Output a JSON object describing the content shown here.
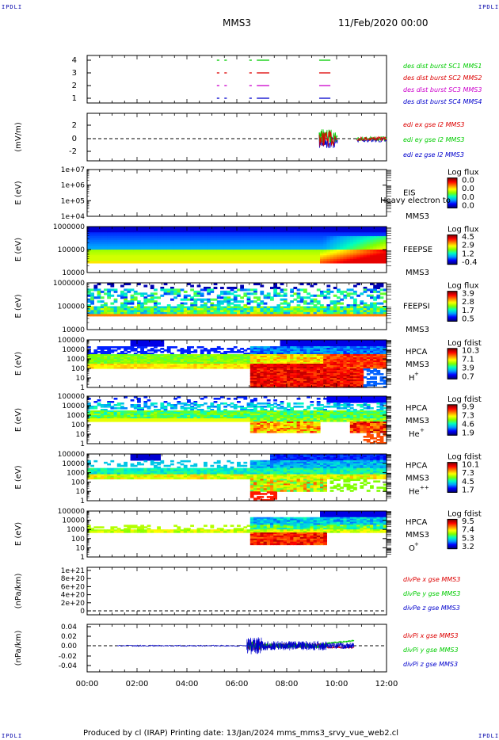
{
  "corners": {
    "tl": "IPDLI",
    "tr": "IPDLI",
    "bl": "IPDLI",
    "br": "IPDLI"
  },
  "header": {
    "title": "MMS3",
    "date": "11/Feb/2020 00:00"
  },
  "footer": {
    "text": "Produced by cl (IRAP)   Printing date: 13/Jan/2024   mms_mms3_srvy_vue_web2.cl"
  },
  "colors": {
    "red": "#dd0000",
    "magenta": "#cc00cc",
    "green": "#00cc00",
    "blue": "#0000cc",
    "colorbar": [
      "#000080",
      "#0000ff",
      "#00a0ff",
      "#00ffc0",
      "#80ff00",
      "#ffff00",
      "#ff8000",
      "#ff0000",
      "#800000"
    ]
  },
  "chart_data": [
    {
      "type": "line",
      "id": "burst",
      "ylim": [
        0.5,
        4.5
      ],
      "yticks": [
        "4",
        "3",
        "2",
        "1"
      ],
      "xlim": [
        0,
        12
      ],
      "series": [
        {
          "name": "des dist burst SC1 MMS1",
          "color": "#00cc00",
          "level": 4,
          "segments": [
            [
              5.2,
              5.3
            ],
            [
              5.5,
              5.6
            ],
            [
              6.5,
              6.6
            ],
            [
              6.8,
              7.3
            ],
            [
              9.3,
              9.75
            ]
          ]
        },
        {
          "name": "des dist burst SC2 MMS2",
          "color": "#dd0000",
          "level": 3,
          "segments": [
            [
              5.2,
              5.3
            ],
            [
              5.5,
              5.6
            ],
            [
              6.5,
              6.6
            ],
            [
              6.8,
              7.3
            ],
            [
              9.3,
              9.75
            ]
          ]
        },
        {
          "name": "des dist burst SC3 MMS3",
          "color": "#cc00cc",
          "level": 2,
          "segments": [
            [
              5.2,
              5.3
            ],
            [
              5.5,
              5.6
            ],
            [
              6.5,
              6.6
            ],
            [
              6.8,
              7.3
            ],
            [
              9.3,
              9.75
            ]
          ]
        },
        {
          "name": "des dist burst SC4 MMS4",
          "color": "#0000cc",
          "level": 1,
          "segments": [
            [
              5.2,
              5.3
            ],
            [
              5.5,
              5.6
            ],
            [
              6.5,
              6.6
            ],
            [
              6.8,
              7.3
            ],
            [
              9.3,
              9.75
            ]
          ]
        }
      ]
    },
    {
      "type": "line",
      "id": "edi",
      "ylabel": "(mV/m)",
      "ylim": [
        -3,
        3.5
      ],
      "yticks": [
        "2",
        "0",
        "-2"
      ],
      "xlim": [
        0,
        12
      ],
      "series": [
        {
          "name": "edi ex gse l2 MMS3",
          "color": "#dd0000"
        },
        {
          "name": "edi ey gse l2 MMS3",
          "color": "#00cc00"
        },
        {
          "name": "edi ez gse l2 MMS3",
          "color": "#0000cc"
        }
      ]
    },
    {
      "type": "heatmap",
      "id": "eis",
      "ylabel": "E (eV)",
      "yticks": [
        "1e+07",
        "1e+06",
        "1e+05",
        "1e+04"
      ],
      "instrument": "EIS",
      "spacecraft": "MMS3",
      "overlay": "Heavy electron to",
      "cbar_title": "Log flux",
      "cbar_ticks": [
        "0.0",
        "0.0",
        "0.0",
        "0.0"
      ]
    },
    {
      "type": "heatmap",
      "id": "feepse",
      "ylabel": "E (eV)",
      "yticks": [
        "1000000",
        "100000",
        "10000"
      ],
      "instrument": "FEEPSE",
      "spacecraft": "MMS3",
      "cbar_title": "Log flux",
      "cbar_ticks": [
        "4.5",
        "2.9",
        "1.2",
        "-0.4"
      ]
    },
    {
      "type": "heatmap",
      "id": "feepsi",
      "ylabel": "E (eV)",
      "yticks": [
        "1000000",
        "100000",
        "10000"
      ],
      "instrument": "FEEPSI",
      "spacecraft": "MMS3",
      "cbar_title": "Log flux",
      "cbar_ticks": [
        "3.9",
        "2.8",
        "1.7",
        "0.5"
      ]
    },
    {
      "type": "heatmap",
      "id": "hpca_h",
      "ylabel": "E (eV)",
      "yticks": [
        "100000",
        "10000",
        "1000",
        "100",
        "10",
        "1"
      ],
      "instrument": "HPCA",
      "spacecraft": "MMS3",
      "species": "H",
      "charge": "+",
      "cbar_title": "Log fdist",
      "cbar_ticks": [
        "10.3",
        "7.1",
        "3.9",
        "0.7"
      ]
    },
    {
      "type": "heatmap",
      "id": "hpca_he",
      "ylabel": "E (eV)",
      "yticks": [
        "100000",
        "10000",
        "1000",
        "100",
        "10",
        "1"
      ],
      "instrument": "HPCA",
      "spacecraft": "MMS3",
      "species": "He",
      "charge": "+",
      "cbar_title": "Log fdist",
      "cbar_ticks": [
        "9.9",
        "7.3",
        "4.6",
        "1.9"
      ]
    },
    {
      "type": "heatmap",
      "id": "hpca_he2",
      "ylabel": "E (eV)",
      "yticks": [
        "100000",
        "10000",
        "1000",
        "100",
        "10",
        "1"
      ],
      "instrument": "HPCA",
      "spacecraft": "MMS3",
      "species": "He",
      "charge": "++",
      "cbar_title": "Log fdist",
      "cbar_ticks": [
        "10.1",
        "7.3",
        "4.5",
        "1.7"
      ]
    },
    {
      "type": "heatmap",
      "id": "hpca_o",
      "ylabel": "E (eV)",
      "yticks": [
        "100000",
        "10000",
        "1000",
        "100",
        "10",
        "1"
      ],
      "instrument": "HPCA",
      "spacecraft": "MMS3",
      "species": "O",
      "charge": "+",
      "cbar_title": "Log fdist",
      "cbar_ticks": [
        "9.5",
        "7.4",
        "5.3",
        "3.2"
      ]
    },
    {
      "type": "line",
      "id": "divpe",
      "ylabel": "(nPa/km)",
      "yticks": [
        "1e+21",
        "8e+20",
        "6e+20",
        "4e+20",
        "2e+20",
        "0"
      ],
      "xlim": [
        0,
        12
      ],
      "series": [
        {
          "name": "divPe x gse MMS3",
          "color": "#dd0000"
        },
        {
          "name": "divPe y gse MMS3",
          "color": "#00cc00"
        },
        {
          "name": "divPe z gse MMS3",
          "color": "#0000cc"
        }
      ]
    },
    {
      "type": "line",
      "id": "divpi",
      "ylabel": "(nPa/km)",
      "ylim": [
        -0.05,
        0.045
      ],
      "yticks": [
        "0.04",
        "0.02",
        "0.00",
        "-0.02",
        "-0.04"
      ],
      "xlim": [
        0,
        12
      ],
      "xlabels": [
        "00:00",
        "02:00",
        "04:00",
        "06:00",
        "08:00",
        "10:00",
        "12:00"
      ],
      "series": [
        {
          "name": "divPi x gse MMS3",
          "color": "#dd0000"
        },
        {
          "name": "divPi y gse MMS3",
          "color": "#00cc00"
        },
        {
          "name": "divPi z gse MMS3",
          "color": "#0000cc"
        }
      ]
    }
  ]
}
